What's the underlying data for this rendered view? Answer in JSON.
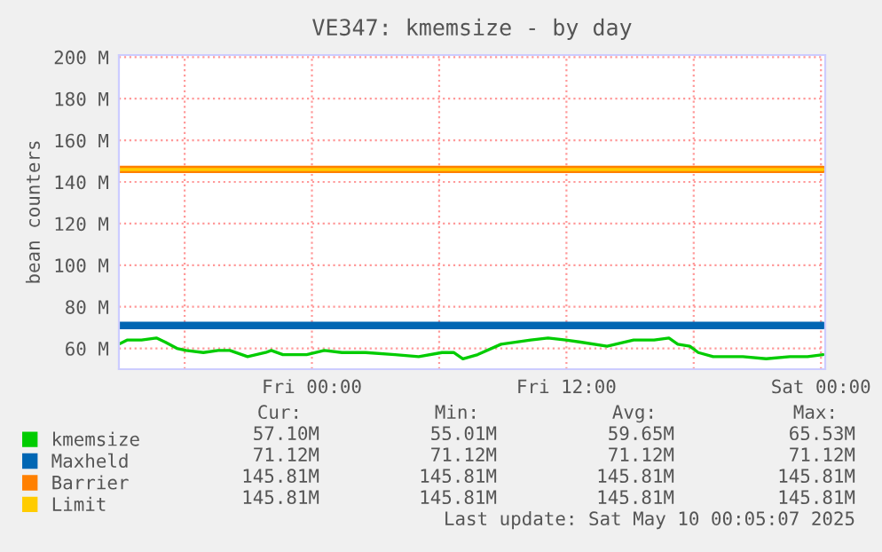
{
  "chart_data": {
    "type": "line",
    "title": "VE347: kmemsize - by day",
    "ylabel": "bean counters",
    "series": [
      {
        "name": "kmemsize",
        "color": "#00cc00",
        "x": [
          "2025-05-08T14:54",
          "2025-05-08T15:17",
          "2025-05-08T15:58",
          "2025-05-08T16:40",
          "2025-05-08T17:05",
          "2025-05-08T17:38",
          "2025-05-08T18:04",
          "2025-05-08T18:53",
          "2025-05-08T19:35",
          "2025-05-08T20:08",
          "2025-05-08T20:58",
          "2025-05-08T21:49",
          "2025-05-08T22:05",
          "2025-05-08T22:38",
          "2025-05-08T23:45",
          "2025-05-09T00:35",
          "2025-05-09T01:25",
          "2025-05-09T02:32",
          "2025-05-09T03:55",
          "2025-05-09T05:02",
          "2025-05-09T06:08",
          "2025-05-09T06:41",
          "2025-05-09T07:07",
          "2025-05-09T07:49",
          "2025-05-09T08:55",
          "2025-05-09T10:19",
          "2025-05-09T11:08",
          "2025-05-09T11:58",
          "2025-05-09T12:40",
          "2025-05-09T13:55",
          "2025-05-09T15:10",
          "2025-05-09T16:08",
          "2025-05-09T16:50",
          "2025-05-09T17:15",
          "2025-05-09T17:49",
          "2025-05-09T18:13",
          "2025-05-09T18:55",
          "2025-05-09T20:19",
          "2025-05-09T21:25",
          "2025-05-09T22:32",
          "2025-05-09T23:22",
          "2025-05-10T00:06"
        ],
        "values": [
          62,
          64,
          64,
          65,
          63,
          60,
          59,
          58,
          59,
          59,
          56,
          58,
          59,
          57,
          57,
          59,
          58,
          58,
          57,
          56,
          58,
          58,
          55,
          57,
          62,
          64,
          65,
          64,
          63,
          61,
          64,
          64,
          65,
          62,
          61,
          58,
          56,
          56,
          55,
          56,
          56,
          57
        ]
      },
      {
        "name": "Maxheld",
        "color": "#0066b3",
        "x": [
          "2025-05-08T14:54",
          "2025-05-10T00:06"
        ],
        "values": [
          71,
          71
        ]
      },
      {
        "name": "Barrier",
        "color": "#ff8000",
        "x": [
          "2025-05-08T14:54",
          "2025-05-10T00:06"
        ],
        "values": [
          146,
          146
        ]
      },
      {
        "name": "Limit",
        "color": "#ffcc00",
        "x": [
          "2025-05-08T14:54",
          "2025-05-10T00:06"
        ],
        "values": [
          146,
          146
        ]
      }
    ],
    "xlim": [
      "2025-05-08T14:54",
      "2025-05-10T00:12"
    ],
    "xticks": [
      {
        "value": "2025-05-08T18:00",
        "label": null
      },
      {
        "value": "2025-05-09T00:00",
        "label": "Fri 00:00"
      },
      {
        "value": "2025-05-09T06:00",
        "label": null
      },
      {
        "value": "2025-05-09T12:00",
        "label": "Fri 12:00"
      },
      {
        "value": "2025-05-09T18:00",
        "label": null
      },
      {
        "value": "2025-05-10T00:00",
        "label": "Sat 00:00"
      }
    ],
    "ylim": [
      50,
      201
    ],
    "yticks": [
      {
        "value": 60,
        "label": "60 M"
      },
      {
        "value": 80,
        "label": "80 M"
      },
      {
        "value": 100,
        "label": "100 M"
      },
      {
        "value": 120,
        "label": "120 M"
      },
      {
        "value": 140,
        "label": "140 M"
      },
      {
        "value": 160,
        "label": "160 M"
      },
      {
        "value": 180,
        "label": "180 M"
      },
      {
        "value": 200,
        "label": "200 M"
      }
    ],
    "grid": true,
    "legend": "bottom",
    "marker": "none",
    "line_style": "solid",
    "annotations": [
      "Cur:",
      "Min:",
      "Avg:",
      "Max:",
      "57.10M",
      "55.01M",
      "59.65M",
      "65.53M",
      "71.12M",
      "71.12M",
      "71.12M",
      "71.12M",
      "145.81M",
      "145.81M",
      "145.81M",
      "145.81M",
      "145.81M",
      "145.81M",
      "145.81M",
      "145.81M",
      "Last update: Sat May 10 00:05:07 2025"
    ]
  }
}
